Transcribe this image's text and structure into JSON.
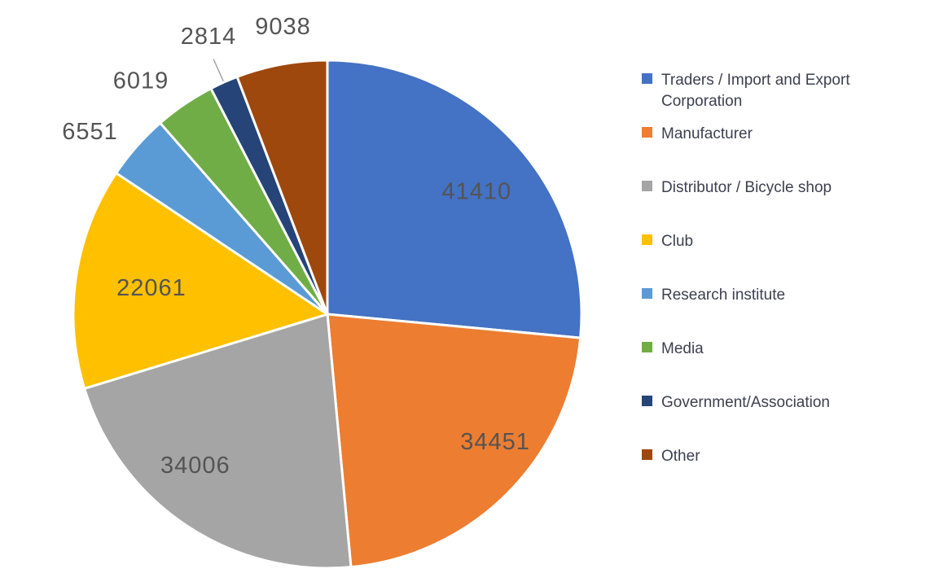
{
  "chart_data": {
    "type": "pie",
    "title": "",
    "legend_position": "right",
    "start_angle_deg": 0,
    "direction": "clockwise",
    "slices": [
      {
        "label": "Traders / Import and Export Corporation",
        "value": 41410,
        "color": "#4472C4",
        "label_placement": "inside"
      },
      {
        "label": "Manufacturer",
        "value": 34451,
        "color": "#ED7D31",
        "label_placement": "inside"
      },
      {
        "label": "Distributor / Bicycle shop",
        "value": 34006,
        "color": "#A5A5A5",
        "label_placement": "inside"
      },
      {
        "label": "Club",
        "value": 22061,
        "color": "#FFC000",
        "label_placement": "inside"
      },
      {
        "label": "Research institute",
        "value": 6551,
        "color": "#5B9BD5",
        "label_placement": "outside"
      },
      {
        "label": "Media",
        "value": 6019,
        "color": "#70AD47",
        "label_placement": "outside"
      },
      {
        "label": "Government/Association",
        "value": 2814,
        "color": "#264478",
        "label_placement": "outside-leader-line"
      },
      {
        "label": "Other",
        "value": 9038,
        "color": "#9E480E",
        "label_placement": "outside"
      }
    ],
    "colors": {
      "data_label": "#545454",
      "legend_text": "#3E4050",
      "slice_border": "#FFFFFF",
      "leader_line": "#A6A6A6",
      "background": "#FFFFFF"
    }
  }
}
